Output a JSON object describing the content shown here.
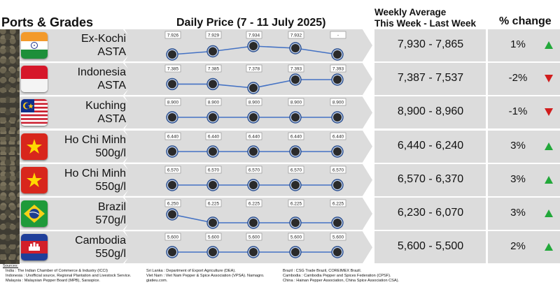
{
  "headers": {
    "ports": "Ports & Grades",
    "daily": "Daily Price (7 - 11 July 2025)",
    "weekly_line1": "Weekly Average",
    "weekly_line2": "This Week - Last Week",
    "change": "% change"
  },
  "rows": [
    {
      "line1": "Ex-Kochi",
      "line2": "ASTA",
      "flag": "india-flag",
      "daily": [
        7926,
        7929,
        7934,
        7932,
        null
      ],
      "daily_labels": [
        "7.926",
        "7.929",
        "7.934",
        "7.932",
        "-"
      ],
      "weekly": "7,930 - 7,865",
      "pct": "1%",
      "trend": "up"
    },
    {
      "line1": "Indonesia",
      "line2": "ASTA",
      "flag": "indonesia-flag",
      "daily": [
        7385,
        7385,
        7378,
        7393,
        7393
      ],
      "daily_labels": [
        "7.385",
        "7.385",
        "7.378",
        "7.393",
        "7.393"
      ],
      "weekly": "7,387 - 7,537",
      "pct": "-2%",
      "trend": "down"
    },
    {
      "line1": "Kuching",
      "line2": "ASTA",
      "flag": "malaysia-flag",
      "daily": [
        8900,
        8900,
        8900,
        8900,
        8900
      ],
      "daily_labels": [
        "8.900",
        "8.900",
        "8.900",
        "8.900",
        "8.900"
      ],
      "weekly": "8,900 - 8,960",
      "pct": "-1%",
      "trend": "down"
    },
    {
      "line1": "Ho Chi Minh",
      "line2": "500g/l",
      "flag": "vietnam-flag",
      "daily": [
        6440,
        6440,
        6440,
        6440,
        6440
      ],
      "daily_labels": [
        "6.440",
        "6.440",
        "6.440",
        "6.440",
        "6.440"
      ],
      "weekly": "6,440 - 6,240",
      "pct": "3%",
      "trend": "up"
    },
    {
      "line1": "Ho Chi Minh",
      "line2": "550g/l",
      "flag": "vietnam-flag",
      "daily": [
        6570,
        6570,
        6570,
        6570,
        6570
      ],
      "daily_labels": [
        "6.570",
        "6.570",
        "6.570",
        "6.570",
        "6.570"
      ],
      "weekly": "6,570 - 6,370",
      "pct": "3%",
      "trend": "up"
    },
    {
      "line1": "Brazil",
      "line2": "570g/l",
      "flag": "brazil-flag",
      "daily": [
        6250,
        6225,
        6225,
        6225,
        6225
      ],
      "daily_labels": [
        "6.250",
        "6.225",
        "6.225",
        "6.225",
        "6.225"
      ],
      "weekly": "6,230 - 6,070",
      "pct": "3%",
      "trend": "up"
    },
    {
      "line1": "Cambodia",
      "line2": "550g/l",
      "flag": "cambodia-flag",
      "daily": [
        5600,
        5600,
        5600,
        5600,
        5600
      ],
      "daily_labels": [
        "5.600",
        "5.600",
        "5.600",
        "5.600",
        "5.600"
      ],
      "weekly": "5,600 - 5,500",
      "pct": "2%",
      "trend": "up"
    }
  ],
  "colors": {
    "up": "#22a83a",
    "down": "#d11d1d",
    "line": "#4472c4",
    "band": "#dcdcdc"
  },
  "sources": {
    "title": "Sources:",
    "col1": [
      "India : The Indian Chamber of Commerce & Industry (ICCI)",
      "Indonesia : Unofficial source, Regional Plantation and Livestock Service.",
      "Malaysia : Malaysian Pepper Board (MPB), Saraspice."
    ],
    "col2": [
      "Sri Lanka : Department of Export Agriculture (DEA).",
      "Viet Nam : Viet Nam Pepper & Spice Association (VPSA). Namagro.",
      "giatieu.com."
    ],
    "col3": [
      "Brazil : CSG Trade Brazil, COREIMEX Brazil.",
      "Cambodia : Cambodia Pepper and Spices Federation (CPSF).",
      "China : Hainan Pepper Association, China Spice Association CSA)."
    ]
  }
}
